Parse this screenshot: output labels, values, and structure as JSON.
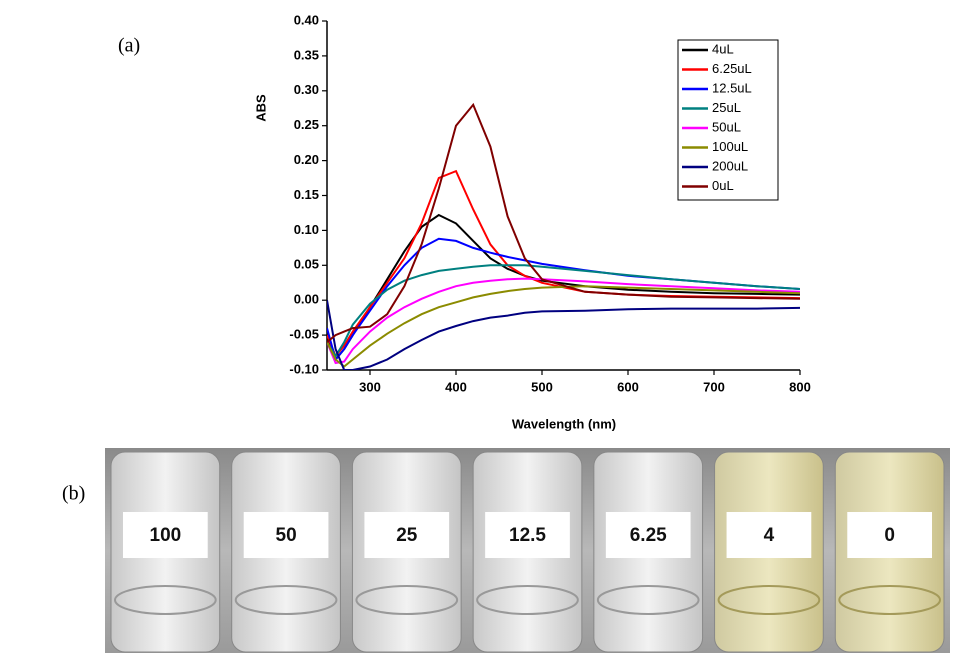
{
  "chart_data": {
    "type": "line",
    "panel_label": "(a)",
    "x_label": "Wavelength (nm)",
    "y_label": "ABS",
    "x": [
      250,
      260,
      270,
      280,
      300,
      320,
      340,
      360,
      380,
      400,
      420,
      440,
      460,
      480,
      500,
      550,
      600,
      650,
      700,
      750,
      800
    ],
    "xlim": [
      250,
      800
    ],
    "ylim": [
      -0.1,
      0.4
    ],
    "xticks": [
      300,
      400,
      500,
      600,
      700,
      800
    ],
    "yticks": [
      {
        "value": -0.1,
        "label": "-0.10"
      },
      {
        "value": -0.05,
        "label": "-0.05"
      },
      {
        "value": 0,
        "label": "0.00"
      },
      {
        "value": 0.05,
        "label": "0.05"
      },
      {
        "value": 0.1,
        "label": "0.10"
      },
      {
        "value": 0.15,
        "label": "0.15"
      },
      {
        "value": 0.2,
        "label": "0.20"
      },
      {
        "value": 0.25,
        "label": "0.25"
      },
      {
        "value": 0.3,
        "label": "0.30"
      },
      {
        "value": 0.35,
        "label": "0.35"
      },
      {
        "value": 0.4,
        "label": "0.40"
      }
    ],
    "legend": "upper right",
    "series": [
      {
        "name": "4uL",
        "color": "#000000",
        "values": [
          -0.05,
          -0.085,
          -0.07,
          -0.05,
          -0.01,
          0.03,
          0.07,
          0.105,
          0.122,
          0.11,
          0.085,
          0.06,
          0.045,
          0.035,
          0.028,
          0.02,
          0.015,
          0.012,
          0.01,
          0.009,
          0.008
        ]
      },
      {
        "name": "6.25uL",
        "color": "#ff0000",
        "values": [
          -0.05,
          -0.08,
          -0.065,
          -0.045,
          -0.01,
          0.025,
          0.06,
          0.11,
          0.175,
          0.185,
          0.13,
          0.08,
          0.05,
          0.035,
          0.025,
          0.012,
          0.008,
          0.006,
          0.005,
          0.004,
          0.003
        ]
      },
      {
        "name": "12.5uL",
        "color": "#0000ff",
        "values": [
          -0.04,
          -0.085,
          -0.07,
          -0.05,
          -0.015,
          0.02,
          0.05,
          0.075,
          0.088,
          0.085,
          0.075,
          0.068,
          0.062,
          0.057,
          0.052,
          0.043,
          0.035,
          0.03,
          0.025,
          0.02,
          0.016
        ]
      },
      {
        "name": "25uL",
        "color": "#008080",
        "values": [
          -0.06,
          -0.08,
          -0.06,
          -0.035,
          -0.005,
          0.015,
          0.028,
          0.036,
          0.042,
          0.045,
          0.048,
          0.05,
          0.05,
          0.05,
          0.048,
          0.042,
          0.036,
          0.03,
          0.025,
          0.02,
          0.016
        ]
      },
      {
        "name": "50uL",
        "color": "#ff00ff",
        "values": [
          -0.06,
          -0.09,
          -0.088,
          -0.07,
          -0.045,
          -0.025,
          -0.01,
          0.002,
          0.012,
          0.02,
          0.025,
          0.028,
          0.03,
          0.031,
          0.03,
          0.027,
          0.023,
          0.02,
          0.017,
          0.014,
          0.012
        ]
      },
      {
        "name": "100uL",
        "color": "#8b8b00",
        "values": [
          -0.06,
          -0.085,
          -0.095,
          -0.085,
          -0.065,
          -0.048,
          -0.033,
          -0.02,
          -0.01,
          -0.003,
          0.004,
          0.009,
          0.013,
          0.016,
          0.018,
          0.02,
          0.018,
          0.016,
          0.014,
          0.012,
          0.01
        ]
      },
      {
        "name": "200uL",
        "color": "#000080",
        "values": [
          0,
          -0.07,
          -0.1,
          -0.1,
          -0.095,
          -0.085,
          -0.07,
          -0.057,
          -0.045,
          -0.037,
          -0.03,
          -0.025,
          -0.022,
          -0.018,
          -0.016,
          -0.015,
          -0.013,
          -0.012,
          -0.012,
          -0.012,
          -0.011
        ]
      },
      {
        "name": "0uL",
        "color": "#800000",
        "values": [
          -0.06,
          -0.05,
          -0.045,
          -0.04,
          -0.038,
          -0.02,
          0.02,
          0.08,
          0.16,
          0.25,
          0.28,
          0.22,
          0.12,
          0.06,
          0.03,
          0.012,
          0.008,
          0.005,
          0.004,
          0.003,
          0.002
        ]
      }
    ]
  },
  "photo": {
    "panel_label": "(b)",
    "labels": [
      "100",
      "50",
      "25",
      "12.5",
      "6.25",
      "4",
      "0"
    ]
  }
}
